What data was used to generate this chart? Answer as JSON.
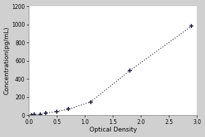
{
  "x_data": [
    0.05,
    0.1,
    0.2,
    0.3,
    0.5,
    0.7,
    1.1,
    1.8,
    2.9
  ],
  "y_data": [
    2,
    5,
    10,
    20,
    40,
    65,
    145,
    490,
    980
  ],
  "xlabel": "Optical Density",
  "ylabel": "Concentration(pg/mL)",
  "xlim": [
    0,
    3
  ],
  "ylim": [
    0,
    1200
  ],
  "xticks": [
    0,
    0.5,
    1,
    1.5,
    2,
    2.5,
    3
  ],
  "yticks": [
    0,
    200,
    400,
    600,
    800,
    1000,
    1200
  ],
  "line_color": "#444444",
  "marker": "+",
  "marker_color": "#222244",
  "outer_bg_color": "#d0d0d0",
  "plot_bg_color": "#ffffff",
  "line_style": "dotted",
  "marker_size": 5,
  "marker_linewidth": 1.2,
  "line_width": 1.0,
  "tick_fontsize": 5.5,
  "label_fontsize": 6.5,
  "fig_width": 3.0,
  "fig_height": 2.0,
  "dpi": 100
}
